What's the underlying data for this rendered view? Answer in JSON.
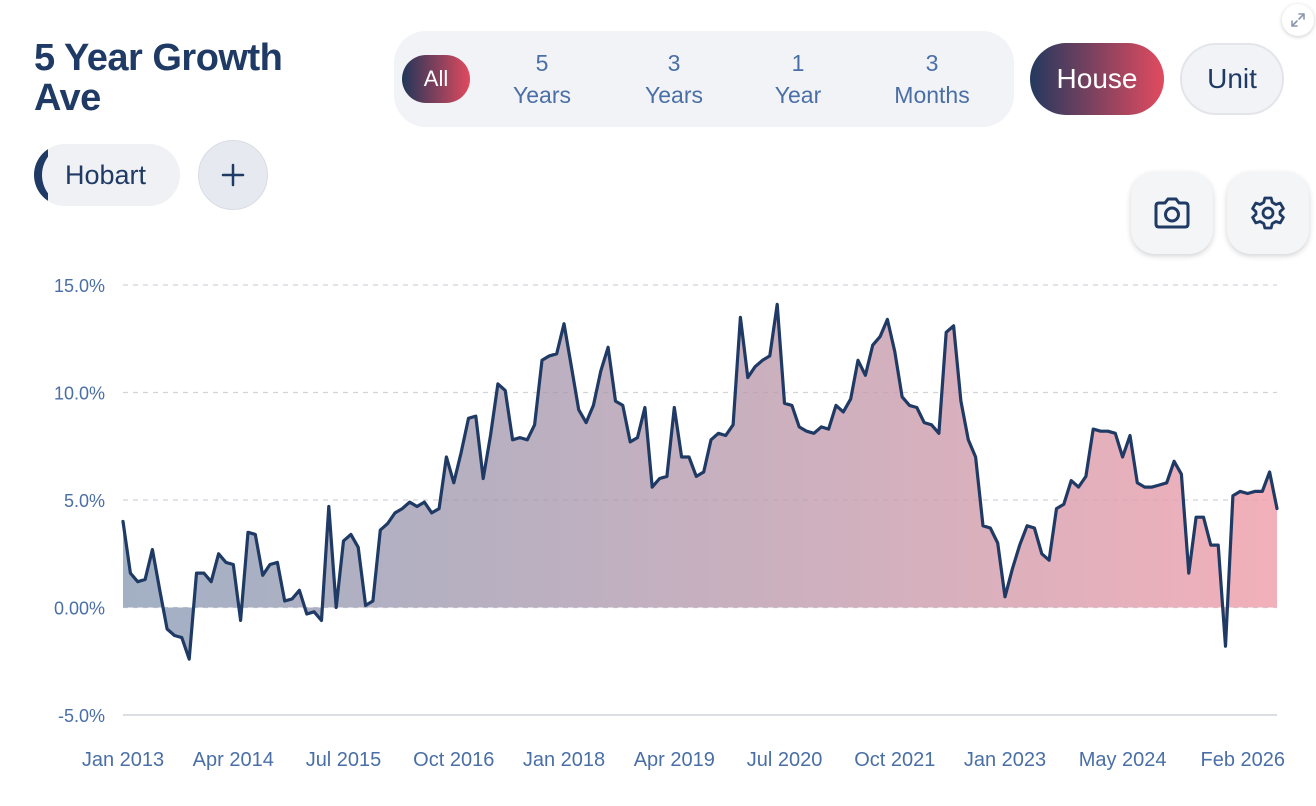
{
  "header": {
    "title": "5 Year Growth Ave"
  },
  "range_filter": {
    "all_label": "All",
    "options": [
      {
        "line1": "5",
        "line2": "Years"
      },
      {
        "line1": "3",
        "line2": "Years"
      },
      {
        "line1": "1",
        "line2": "Year"
      },
      {
        "line1": "3",
        "line2": "Months"
      }
    ]
  },
  "property_type": {
    "house_label": "House",
    "unit_label": "Unit",
    "selected": "House"
  },
  "locations": {
    "chips": [
      "Hobart"
    ],
    "add_label": "+"
  },
  "toolbar": {
    "camera_icon": "camera-icon",
    "settings_icon": "gear-icon",
    "expand_icon": "expand-icon"
  },
  "colors": {
    "line": "#1f3a64",
    "fill_start": "#7b8fab",
    "fill_end": "#f0a2ae",
    "gridline": "#cfd3da",
    "axis_text": "#4a6fa6"
  },
  "chart_data": {
    "type": "area",
    "title": "5 Year Growth Ave",
    "series_name": "Hobart House",
    "y_ticks": [
      15,
      10,
      5,
      0,
      -5
    ],
    "y_tick_labels": [
      "15.0%",
      "10.0%",
      "5.0%",
      "0.00%",
      "-5.0%"
    ],
    "ylim": [
      -5,
      15
    ],
    "x_tick_labels": [
      "Jan 2013",
      "Apr 2014",
      "Jul 2015",
      "Oct 2016",
      "Jan 2018",
      "Apr 2019",
      "Jul 2020",
      "Oct 2021",
      "Jan 2023",
      "May 2024",
      "Feb 2026"
    ],
    "x_tick_positions": [
      0,
      15,
      30,
      45,
      60,
      75,
      90,
      105,
      120,
      136,
      157
    ],
    "x_month_range": [
      0,
      157
    ],
    "points": [
      [
        0,
        4.0
      ],
      [
        1,
        1.6
      ],
      [
        2,
        1.2
      ],
      [
        3,
        1.3
      ],
      [
        4,
        2.7
      ],
      [
        5,
        0.8
      ],
      [
        6,
        -1.0
      ],
      [
        7,
        -1.3
      ],
      [
        8,
        -1.4
      ],
      [
        9,
        -2.4
      ],
      [
        10,
        1.6
      ],
      [
        11,
        1.6
      ],
      [
        12,
        1.2
      ],
      [
        13,
        2.5
      ],
      [
        14,
        2.1
      ],
      [
        15,
        2.0
      ],
      [
        16,
        -0.6
      ],
      [
        17,
        3.5
      ],
      [
        18,
        3.4
      ],
      [
        19,
        1.5
      ],
      [
        20,
        2.0
      ],
      [
        21,
        2.1
      ],
      [
        22,
        0.3
      ],
      [
        23,
        0.4
      ],
      [
        24,
        0.8
      ],
      [
        25,
        -0.3
      ],
      [
        26,
        -0.2
      ],
      [
        27,
        -0.6
      ],
      [
        28,
        4.7
      ],
      [
        29,
        0.0
      ],
      [
        30,
        3.1
      ],
      [
        31,
        3.4
      ],
      [
        32,
        2.8
      ],
      [
        33,
        0.1
      ],
      [
        34,
        0.3
      ],
      [
        35,
        3.6
      ],
      [
        36,
        3.9
      ],
      [
        37,
        4.4
      ],
      [
        38,
        4.6
      ],
      [
        39,
        4.9
      ],
      [
        40,
        4.7
      ],
      [
        41,
        4.9
      ],
      [
        42,
        4.4
      ],
      [
        43,
        4.6
      ],
      [
        44,
        7.0
      ],
      [
        45,
        5.8
      ],
      [
        46,
        7.2
      ],
      [
        47,
        8.8
      ],
      [
        48,
        8.9
      ],
      [
        49,
        6.0
      ],
      [
        50,
        8.0
      ],
      [
        51,
        10.4
      ],
      [
        52,
        10.1
      ],
      [
        53,
        7.8
      ],
      [
        54,
        7.9
      ],
      [
        55,
        7.8
      ],
      [
        56,
        8.5
      ],
      [
        57,
        11.5
      ],
      [
        58,
        11.7
      ],
      [
        59,
        11.8
      ],
      [
        60,
        13.2
      ],
      [
        61,
        11.2
      ],
      [
        62,
        9.2
      ],
      [
        63,
        8.6
      ],
      [
        64,
        9.4
      ],
      [
        65,
        11.0
      ],
      [
        66,
        12.1
      ],
      [
        67,
        9.6
      ],
      [
        68,
        9.4
      ],
      [
        69,
        7.7
      ],
      [
        70,
        7.9
      ],
      [
        71,
        9.3
      ],
      [
        72,
        5.6
      ],
      [
        73,
        6.0
      ],
      [
        74,
        6.1
      ],
      [
        75,
        9.3
      ],
      [
        76,
        7.0
      ],
      [
        77,
        7.0
      ],
      [
        78,
        6.1
      ],
      [
        79,
        6.3
      ],
      [
        80,
        7.8
      ],
      [
        81,
        8.1
      ],
      [
        82,
        8.0
      ],
      [
        83,
        8.5
      ],
      [
        84,
        13.5
      ],
      [
        85,
        10.7
      ],
      [
        86,
        11.2
      ],
      [
        87,
        11.5
      ],
      [
        88,
        11.7
      ],
      [
        89,
        14.1
      ],
      [
        90,
        9.5
      ],
      [
        91,
        9.4
      ],
      [
        92,
        8.4
      ],
      [
        93,
        8.2
      ],
      [
        94,
        8.1
      ],
      [
        95,
        8.4
      ],
      [
        96,
        8.3
      ],
      [
        97,
        9.4
      ],
      [
        98,
        9.1
      ],
      [
        99,
        9.7
      ],
      [
        100,
        11.5
      ],
      [
        101,
        10.8
      ],
      [
        102,
        12.2
      ],
      [
        103,
        12.6
      ],
      [
        104,
        13.4
      ],
      [
        105,
        11.9
      ],
      [
        106,
        9.8
      ],
      [
        107,
        9.4
      ],
      [
        108,
        9.3
      ],
      [
        109,
        8.6
      ],
      [
        110,
        8.5
      ],
      [
        111,
        8.1
      ],
      [
        112,
        12.8
      ],
      [
        113,
        13.1
      ],
      [
        114,
        9.6
      ],
      [
        115,
        7.8
      ],
      [
        116,
        7.0
      ],
      [
        117,
        3.8
      ],
      [
        118,
        3.7
      ],
      [
        119,
        3.0
      ],
      [
        120,
        0.5
      ],
      [
        121,
        1.8
      ],
      [
        122,
        2.9
      ],
      [
        123,
        3.8
      ],
      [
        124,
        3.7
      ],
      [
        125,
        2.5
      ],
      [
        126,
        2.2
      ],
      [
        127,
        4.6
      ],
      [
        128,
        4.8
      ],
      [
        129,
        5.9
      ],
      [
        130,
        5.6
      ],
      [
        131,
        6.1
      ],
      [
        132,
        8.3
      ],
      [
        133,
        8.2
      ],
      [
        134,
        8.2
      ],
      [
        135,
        8.1
      ],
      [
        136,
        7.0
      ],
      [
        137,
        8.0
      ],
      [
        138,
        5.8
      ],
      [
        139,
        5.6
      ],
      [
        140,
        5.6
      ],
      [
        141,
        5.7
      ],
      [
        142,
        5.8
      ],
      [
        143,
        6.8
      ],
      [
        144,
        6.2
      ],
      [
        145,
        1.6
      ],
      [
        146,
        4.2
      ],
      [
        147,
        4.2
      ],
      [
        148,
        2.9
      ],
      [
        149,
        2.9
      ],
      [
        150,
        -1.8
      ],
      [
        151,
        5.2
      ],
      [
        152,
        5.4
      ],
      [
        153,
        5.3
      ],
      [
        154,
        5.4
      ],
      [
        155,
        5.4
      ],
      [
        156,
        6.3
      ],
      [
        157,
        4.6
      ]
    ]
  }
}
